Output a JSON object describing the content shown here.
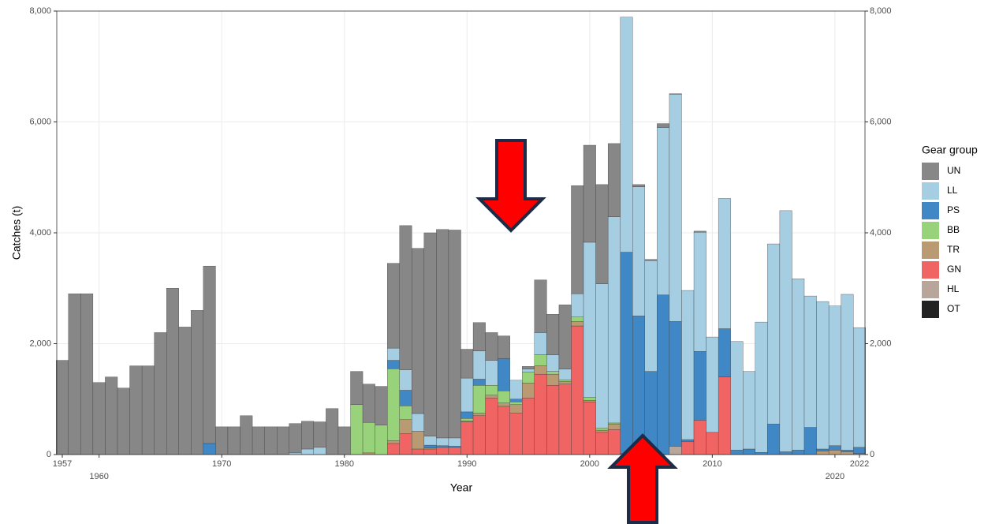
{
  "chart_data": {
    "type": "stacked-bar",
    "x_label": "Year",
    "y_label": "Catches (t)",
    "legend_title": "Gear group",
    "x": [
      1957,
      1958,
      1959,
      1960,
      1961,
      1962,
      1963,
      1964,
      1965,
      1966,
      1967,
      1968,
      1969,
      1970,
      1971,
      1972,
      1973,
      1974,
      1975,
      1976,
      1977,
      1978,
      1979,
      1980,
      1981,
      1982,
      1983,
      1984,
      1985,
      1986,
      1987,
      1988,
      1989,
      1990,
      1991,
      1992,
      1993,
      1994,
      1995,
      1996,
      1997,
      1998,
      1999,
      2000,
      2001,
      2002,
      2003,
      2004,
      2005,
      2006,
      2007,
      2008,
      2009,
      2010,
      2011,
      2012,
      2013,
      2014,
      2015,
      2016,
      2017,
      2018,
      2019,
      2020,
      2021,
      2022
    ],
    "xlim": [
      1956.55,
      2022.45
    ],
    "xticks": [
      1957,
      1960,
      1970,
      1980,
      1990,
      2000,
      2010,
      2020,
      2022
    ],
    "ylim": [
      0,
      8000
    ],
    "yticks": [
      0,
      {
        "value": 2000,
        "label": "2,000"
      },
      {
        "value": 4000,
        "label": "4,000"
      },
      {
        "value": 6000,
        "label": "6,000"
      },
      {
        "value": 8000,
        "label": "8,000"
      }
    ],
    "y2lim": [
      0,
      8000
    ],
    "y2ticks": [
      0,
      {
        "value": 2000,
        "label": "2,000"
      },
      {
        "value": 4000,
        "label": "4,000"
      },
      {
        "value": 6000,
        "label": "6,000"
      },
      {
        "value": 8000,
        "label": "8,000"
      }
    ],
    "grid": true,
    "series": [
      {
        "name": "UN",
        "color": "#878787",
        "values": [
          1700,
          2900,
          2900,
          1300,
          1400,
          1200,
          1600,
          1600,
          2200,
          3000,
          2300,
          2600,
          3200,
          500,
          500,
          700,
          500,
          500,
          500,
          530,
          500,
          460,
          830,
          500,
          600,
          690,
          700,
          1530,
          2600,
          2980,
          3670,
          3760,
          3750,
          520,
          510,
          500,
          410,
          0,
          50,
          950,
          730,
          1160,
          1950,
          1750,
          1790,
          1320,
          0,
          40,
          20,
          70,
          10,
          0,
          20,
          0,
          0,
          0,
          0,
          0,
          0,
          0,
          0,
          0,
          0,
          0,
          0,
          0
        ]
      },
      {
        "name": "LL",
        "color": "#a6cee3",
        "values": [
          0,
          0,
          0,
          0,
          0,
          0,
          0,
          0,
          0,
          0,
          0,
          0,
          0,
          0,
          0,
          0,
          0,
          0,
          0,
          30,
          100,
          130,
          0,
          0,
          0,
          0,
          0,
          220,
          370,
          320,
          160,
          140,
          150,
          610,
          510,
          450,
          0,
          340,
          50,
          400,
          300,
          190,
          420,
          2800,
          2600,
          3720,
          4240,
          2330,
          2000,
          3020,
          4100,
          2690,
          2150,
          1720,
          2350,
          1960,
          1400,
          2350,
          3250,
          4350,
          3090,
          2370,
          2660,
          2520,
          2810,
          2160
        ]
      },
      {
        "name": "PS",
        "color": "#3f88c5",
        "values": [
          0,
          0,
          0,
          0,
          0,
          0,
          0,
          0,
          0,
          0,
          0,
          0,
          200,
          0,
          0,
          0,
          0,
          0,
          0,
          0,
          0,
          0,
          0,
          0,
          0,
          0,
          0,
          150,
          280,
          0,
          50,
          30,
          20,
          120,
          110,
          0,
          580,
          50,
          0,
          0,
          0,
          0,
          0,
          0,
          0,
          0,
          3630,
          2500,
          1500,
          2880,
          2250,
          40,
          1240,
          0,
          870,
          80,
          100,
          40,
          550,
          50,
          80,
          490,
          40,
          80,
          30,
          110
        ]
      },
      {
        "name": "BB",
        "color": "#98d27a",
        "values": [
          0,
          0,
          0,
          0,
          0,
          0,
          0,
          0,
          0,
          0,
          0,
          0,
          0,
          0,
          0,
          0,
          0,
          0,
          0,
          0,
          0,
          0,
          0,
          0,
          900,
          550,
          530,
          1300,
          250,
          0,
          0,
          0,
          0,
          40,
          500,
          180,
          220,
          50,
          200,
          200,
          50,
          30,
          80,
          50,
          40,
          20,
          0,
          0,
          0,
          0,
          0,
          0,
          0,
          0,
          0,
          0,
          0,
          0,
          0,
          0,
          0,
          0,
          0,
          0,
          0,
          0
        ]
      },
      {
        "name": "TR",
        "color": "#b99a72",
        "values": [
          0,
          0,
          0,
          0,
          0,
          0,
          0,
          0,
          0,
          0,
          0,
          0,
          0,
          0,
          0,
          0,
          0,
          0,
          0,
          0,
          0,
          0,
          0,
          0,
          0,
          30,
          0,
          50,
          250,
          320,
          20,
          0,
          0,
          20,
          50,
          50,
          60,
          150,
          270,
          150,
          200,
          50,
          80,
          30,
          40,
          100,
          0,
          0,
          0,
          0,
          0,
          0,
          0,
          0,
          0,
          0,
          0,
          0,
          0,
          0,
          0,
          0,
          60,
          80,
          50,
          0
        ]
      },
      {
        "name": "GN",
        "color": "#f06464",
        "values": [
          0,
          0,
          0,
          0,
          0,
          0,
          0,
          0,
          0,
          0,
          0,
          0,
          0,
          0,
          0,
          0,
          0,
          0,
          0,
          0,
          0,
          0,
          0,
          0,
          0,
          0,
          0,
          200,
          380,
          100,
          100,
          130,
          130,
          590,
          700,
          1020,
          870,
          750,
          1020,
          1450,
          1250,
          1270,
          2320,
          950,
          400,
          450,
          20,
          0,
          0,
          0,
          0,
          230,
          620,
          400,
          1400,
          0,
          0,
          0,
          0,
          0,
          0,
          0,
          0,
          0,
          0,
          20
        ]
      },
      {
        "name": "HL",
        "color": "#b9a69a",
        "values": [
          0,
          0,
          0,
          0,
          0,
          0,
          0,
          0,
          0,
          0,
          0,
          0,
          0,
          0,
          0,
          0,
          0,
          0,
          0,
          0,
          0,
          0,
          0,
          0,
          0,
          0,
          0,
          0,
          0,
          0,
          0,
          0,
          0,
          0,
          0,
          0,
          0,
          0,
          0,
          0,
          0,
          0,
          0,
          0,
          0,
          0,
          0,
          0,
          0,
          0,
          150,
          0,
          0,
          0,
          0,
          0,
          0,
          0,
          0,
          0,
          0,
          0,
          0,
          0,
          0,
          0
        ]
      },
      {
        "name": "OT",
        "color": "#222222",
        "values": [
          0,
          0,
          0,
          0,
          0,
          0,
          0,
          0,
          0,
          0,
          0,
          0,
          0,
          0,
          0,
          0,
          0,
          0,
          0,
          0,
          0,
          0,
          0,
          0,
          0,
          0,
          0,
          0,
          0,
          0,
          0,
          0,
          0,
          0,
          0,
          0,
          0,
          0,
          0,
          0,
          0,
          0,
          0,
          0,
          0,
          0,
          0,
          0,
          0,
          0,
          0,
          0,
          0,
          0,
          0,
          0,
          0,
          0,
          0,
          0,
          0,
          0,
          0,
          0,
          0,
          0
        ]
      }
    ]
  }
}
